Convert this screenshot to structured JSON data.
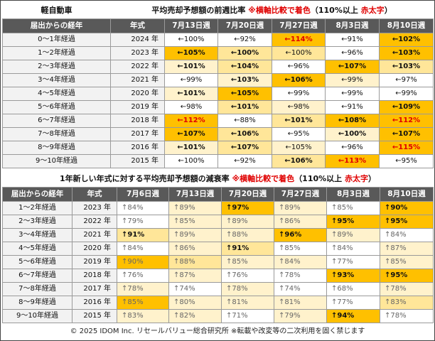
{
  "table1": {
    "corner_title": "軽自動車",
    "title_main": "平均売却予想額の前週比率 ",
    "title_note": "※横軸比較で着色",
    "title_tail": "（110%以上 ",
    "title_red": "赤太字",
    "title_close": "）",
    "headers": [
      "届出からの経年",
      "年式",
      "7月13日週",
      "7月20日週",
      "7月27日週",
      "8月3日週",
      "8月10日週"
    ],
    "rows": [
      {
        "label": "0～1年経過",
        "year": "2024 年",
        "cells": [
          {
            "text": "←100%",
            "bg": "#ffffff",
            "bold": false,
            "red": false
          },
          {
            "text": "←92%",
            "bg": "#ffffff",
            "bold": false,
            "red": false
          },
          {
            "text": "←114%",
            "bg": "#ffc000",
            "bold": false,
            "red": true
          },
          {
            "text": "←91%",
            "bg": "#ffffff",
            "bold": false,
            "red": false
          },
          {
            "text": "←102%",
            "bg": "#ffc000",
            "bold": true,
            "red": false
          }
        ]
      },
      {
        "label": "1～2年経過",
        "year": "2023 年",
        "cells": [
          {
            "text": "←105%",
            "bg": "#ffc000",
            "bold": true,
            "red": false
          },
          {
            "text": "←100%",
            "bg": "#ffe699",
            "bold": true,
            "red": false
          },
          {
            "text": "←100%",
            "bg": "#ffe699",
            "bold": false,
            "red": false
          },
          {
            "text": "←96%",
            "bg": "#ffffff",
            "bold": false,
            "red": false
          },
          {
            "text": "←103%",
            "bg": "#ffc000",
            "bold": true,
            "red": false
          }
        ]
      },
      {
        "label": "2～3年経過",
        "year": "2022 年",
        "cells": [
          {
            "text": "←101%",
            "bg": "#fff2cc",
            "bold": true,
            "red": false
          },
          {
            "text": "←104%",
            "bg": "#ffe699",
            "bold": true,
            "red": false
          },
          {
            "text": "←96%",
            "bg": "#ffffff",
            "bold": false,
            "red": false
          },
          {
            "text": "←107%",
            "bg": "#ffc000",
            "bold": true,
            "red": false
          },
          {
            "text": "←103%",
            "bg": "#ffe699",
            "bold": true,
            "red": false
          }
        ]
      },
      {
        "label": "3～4年経過",
        "year": "2021 年",
        "cells": [
          {
            "text": "←99%",
            "bg": "#ffffff",
            "bold": false,
            "red": false
          },
          {
            "text": "←103%",
            "bg": "#fff2cc",
            "bold": true,
            "red": false
          },
          {
            "text": "←106%",
            "bg": "#ffc000",
            "bold": true,
            "red": false
          },
          {
            "text": "←99%",
            "bg": "#fff2cc",
            "bold": false,
            "red": false
          },
          {
            "text": "←97%",
            "bg": "#ffffff",
            "bold": false,
            "red": false
          }
        ]
      },
      {
        "label": "4～5年経過",
        "year": "2020 年",
        "cells": [
          {
            "text": "←101%",
            "bg": "#fff2cc",
            "bold": true,
            "red": false
          },
          {
            "text": "←105%",
            "bg": "#ffc000",
            "bold": true,
            "red": false
          },
          {
            "text": "←99%",
            "bg": "#ffffff",
            "bold": false,
            "red": false
          },
          {
            "text": "←99%",
            "bg": "#ffffff",
            "bold": false,
            "red": false
          },
          {
            "text": "←99%",
            "bg": "#ffffff",
            "bold": false,
            "red": false
          }
        ]
      },
      {
        "label": "5～6年経過",
        "year": "2019 年",
        "cells": [
          {
            "text": "←98%",
            "bg": "#ffffff",
            "bold": false,
            "red": false
          },
          {
            "text": "←101%",
            "bg": "#ffe699",
            "bold": true,
            "red": false
          },
          {
            "text": "←98%",
            "bg": "#fff2cc",
            "bold": false,
            "red": false
          },
          {
            "text": "←91%",
            "bg": "#ffffff",
            "bold": false,
            "red": false
          },
          {
            "text": "←109%",
            "bg": "#ffc000",
            "bold": true,
            "red": false
          }
        ]
      },
      {
        "label": "6～7年経過",
        "year": "2018 年",
        "cells": [
          {
            "text": "←112%",
            "bg": "#ffc000",
            "bold": false,
            "red": true
          },
          {
            "text": "←88%",
            "bg": "#ffffff",
            "bold": false,
            "red": false
          },
          {
            "text": "←101%",
            "bg": "#ffe699",
            "bold": true,
            "red": false
          },
          {
            "text": "←108%",
            "bg": "#ffc000",
            "bold": true,
            "red": false
          },
          {
            "text": "←112%",
            "bg": "#ffc000",
            "bold": false,
            "red": true
          }
        ]
      },
      {
        "label": "7～8年経過",
        "year": "2017 年",
        "cells": [
          {
            "text": "←107%",
            "bg": "#ffc000",
            "bold": true,
            "red": false
          },
          {
            "text": "←106%",
            "bg": "#ffe699",
            "bold": true,
            "red": false
          },
          {
            "text": "←95%",
            "bg": "#ffffff",
            "bold": false,
            "red": false
          },
          {
            "text": "←100%",
            "bg": "#fff2cc",
            "bold": true,
            "red": false
          },
          {
            "text": "←107%",
            "bg": "#ffc000",
            "bold": true,
            "red": false
          }
        ]
      },
      {
        "label": "8～9年経過",
        "year": "2016 年",
        "cells": [
          {
            "text": "←101%",
            "bg": "#fff2cc",
            "bold": true,
            "red": false
          },
          {
            "text": "←107%",
            "bg": "#ffe699",
            "bold": true,
            "red": false
          },
          {
            "text": "←105%",
            "bg": "#fff2cc",
            "bold": false,
            "red": false
          },
          {
            "text": "←96%",
            "bg": "#ffffff",
            "bold": false,
            "red": false
          },
          {
            "text": "←115%",
            "bg": "#ffc000",
            "bold": false,
            "red": true
          }
        ]
      },
      {
        "label": "9～10年経過",
        "year": "2015 年",
        "cells": [
          {
            "text": "←100%",
            "bg": "#ffffff",
            "bold": false,
            "red": false
          },
          {
            "text": "←92%",
            "bg": "#ffffff",
            "bold": false,
            "red": false
          },
          {
            "text": "←106%",
            "bg": "#ffe699",
            "bold": true,
            "red": false
          },
          {
            "text": "←113%",
            "bg": "#ffc000",
            "bold": false,
            "red": true
          },
          {
            "text": "←95%",
            "bg": "#ffffff",
            "bold": false,
            "red": false
          }
        ]
      }
    ]
  },
  "table2": {
    "title_main": "1年新しい年式に対する平均売却予想額の減衰率 ",
    "title_note": "※横軸比較で着色",
    "title_tail": "（110%以上 ",
    "title_red": "赤太字",
    "title_close": "）",
    "headers": [
      "届出からの経年",
      "年式",
      "7月6日週",
      "7月13日週",
      "7月20日週",
      "7月27日週",
      "8月3日週",
      "8月10日週"
    ],
    "rows": [
      {
        "label": "1～2年経過",
        "year": "2023 年",
        "cells": [
          {
            "text": "↑84%",
            "bg": "#ffffff",
            "bold": false
          },
          {
            "text": "↑89%",
            "bg": "#fff2cc",
            "bold": false
          },
          {
            "text": "↑97%",
            "bg": "#ffc000",
            "bold": true
          },
          {
            "text": "↑89%",
            "bg": "#fff2cc",
            "bold": false
          },
          {
            "text": "↑85%",
            "bg": "#ffffff",
            "bold": false
          },
          {
            "text": "↑90%",
            "bg": "#ffc000",
            "bold": true
          }
        ]
      },
      {
        "label": "2～3年経過",
        "year": "2022 年",
        "cells": [
          {
            "text": "↑79%",
            "bg": "#ffffff",
            "bold": false
          },
          {
            "text": "↑85%",
            "bg": "#fff2cc",
            "bold": false
          },
          {
            "text": "↑89%",
            "bg": "#fff2cc",
            "bold": false
          },
          {
            "text": "↑86%",
            "bg": "#fff2cc",
            "bold": false
          },
          {
            "text": "↑95%",
            "bg": "#ffc000",
            "bold": true
          },
          {
            "text": "↑95%",
            "bg": "#ffc000",
            "bold": true
          }
        ]
      },
      {
        "label": "3～4年経過",
        "year": "2021 年",
        "cells": [
          {
            "text": "↑91%",
            "bg": "#ffe699",
            "bold": true
          },
          {
            "text": "↑89%",
            "bg": "#fff2cc",
            "bold": false
          },
          {
            "text": "↑88%",
            "bg": "#fff2cc",
            "bold": false
          },
          {
            "text": "↑96%",
            "bg": "#ffc000",
            "bold": true
          },
          {
            "text": "↑89%",
            "bg": "#fff2cc",
            "bold": false
          },
          {
            "text": "↑84%",
            "bg": "#ffffff",
            "bold": false
          }
        ]
      },
      {
        "label": "4～5年経過",
        "year": "2020 年",
        "cells": [
          {
            "text": "↑84%",
            "bg": "#ffffff",
            "bold": false
          },
          {
            "text": "↑86%",
            "bg": "#fff2cc",
            "bold": false
          },
          {
            "text": "↑91%",
            "bg": "#ffe699",
            "bold": true
          },
          {
            "text": "↑85%",
            "bg": "#ffffff",
            "bold": false
          },
          {
            "text": "↑84%",
            "bg": "#ffffff",
            "bold": false
          },
          {
            "text": "↑87%",
            "bg": "#fff2cc",
            "bold": false
          }
        ]
      },
      {
        "label": "5～6年経過",
        "year": "2019 年",
        "cells": [
          {
            "text": "↑90%",
            "bg": "#ffc000",
            "bold": false
          },
          {
            "text": "↑88%",
            "bg": "#ffe699",
            "bold": false
          },
          {
            "text": "↑85%",
            "bg": "#fff2cc",
            "bold": false
          },
          {
            "text": "↑84%",
            "bg": "#fff2cc",
            "bold": false
          },
          {
            "text": "↑77%",
            "bg": "#ffffff",
            "bold": false
          },
          {
            "text": "↑85%",
            "bg": "#fff2cc",
            "bold": false
          }
        ]
      },
      {
        "label": "6～7年経過",
        "year": "2018 年",
        "cells": [
          {
            "text": "↑76%",
            "bg": "#ffffff",
            "bold": false
          },
          {
            "text": "↑87%",
            "bg": "#fff2cc",
            "bold": false
          },
          {
            "text": "↑76%",
            "bg": "#ffffff",
            "bold": false
          },
          {
            "text": "↑78%",
            "bg": "#ffffff",
            "bold": false
          },
          {
            "text": "↑93%",
            "bg": "#ffc000",
            "bold": true
          },
          {
            "text": "↑95%",
            "bg": "#ffc000",
            "bold": true
          }
        ]
      },
      {
        "label": "7～8年経過",
        "year": "2017 年",
        "cells": [
          {
            "text": "↑78%",
            "bg": "#fff2cc",
            "bold": false
          },
          {
            "text": "↑74%",
            "bg": "#ffffff",
            "bold": false
          },
          {
            "text": "↑78%",
            "bg": "#fff2cc",
            "bold": false
          },
          {
            "text": "↑74%",
            "bg": "#ffffff",
            "bold": false
          },
          {
            "text": "↑68%",
            "bg": "#ffffff",
            "bold": false
          },
          {
            "text": "↑78%",
            "bg": "#fff2cc",
            "bold": false
          }
        ]
      },
      {
        "label": "8～9年経過",
        "year": "2016 年",
        "cells": [
          {
            "text": "↑85%",
            "bg": "#ffc000",
            "bold": false
          },
          {
            "text": "↑80%",
            "bg": "#fff2cc",
            "bold": false
          },
          {
            "text": "↑81%",
            "bg": "#fff2cc",
            "bold": false
          },
          {
            "text": "↑81%",
            "bg": "#fff2cc",
            "bold": false
          },
          {
            "text": "↑77%",
            "bg": "#ffffff",
            "bold": false
          },
          {
            "text": "↑83%",
            "bg": "#ffe699",
            "bold": false
          }
        ]
      },
      {
        "label": "9～10年経過",
        "year": "2015 年",
        "cells": [
          {
            "text": "↑83%",
            "bg": "#fff2cc",
            "bold": false
          },
          {
            "text": "↑82%",
            "bg": "#fff2cc",
            "bold": false
          },
          {
            "text": "↑71%",
            "bg": "#ffffff",
            "bold": false
          },
          {
            "text": "↑79%",
            "bg": "#fff2cc",
            "bold": false
          },
          {
            "text": "↑94%",
            "bg": "#ffc000",
            "bold": true
          },
          {
            "text": "↑78%",
            "bg": "#ffffff",
            "bold": false
          }
        ]
      }
    ]
  },
  "footer": "© 2025 IDOM Inc. リセールバリュー総合研究所 ※転載や改変等の二次利用を固く禁じます",
  "colors": {
    "strong": "#ffc000",
    "medium": "#ffe699",
    "light": "#fff2cc",
    "header": "#595959",
    "red": "#e00000"
  }
}
